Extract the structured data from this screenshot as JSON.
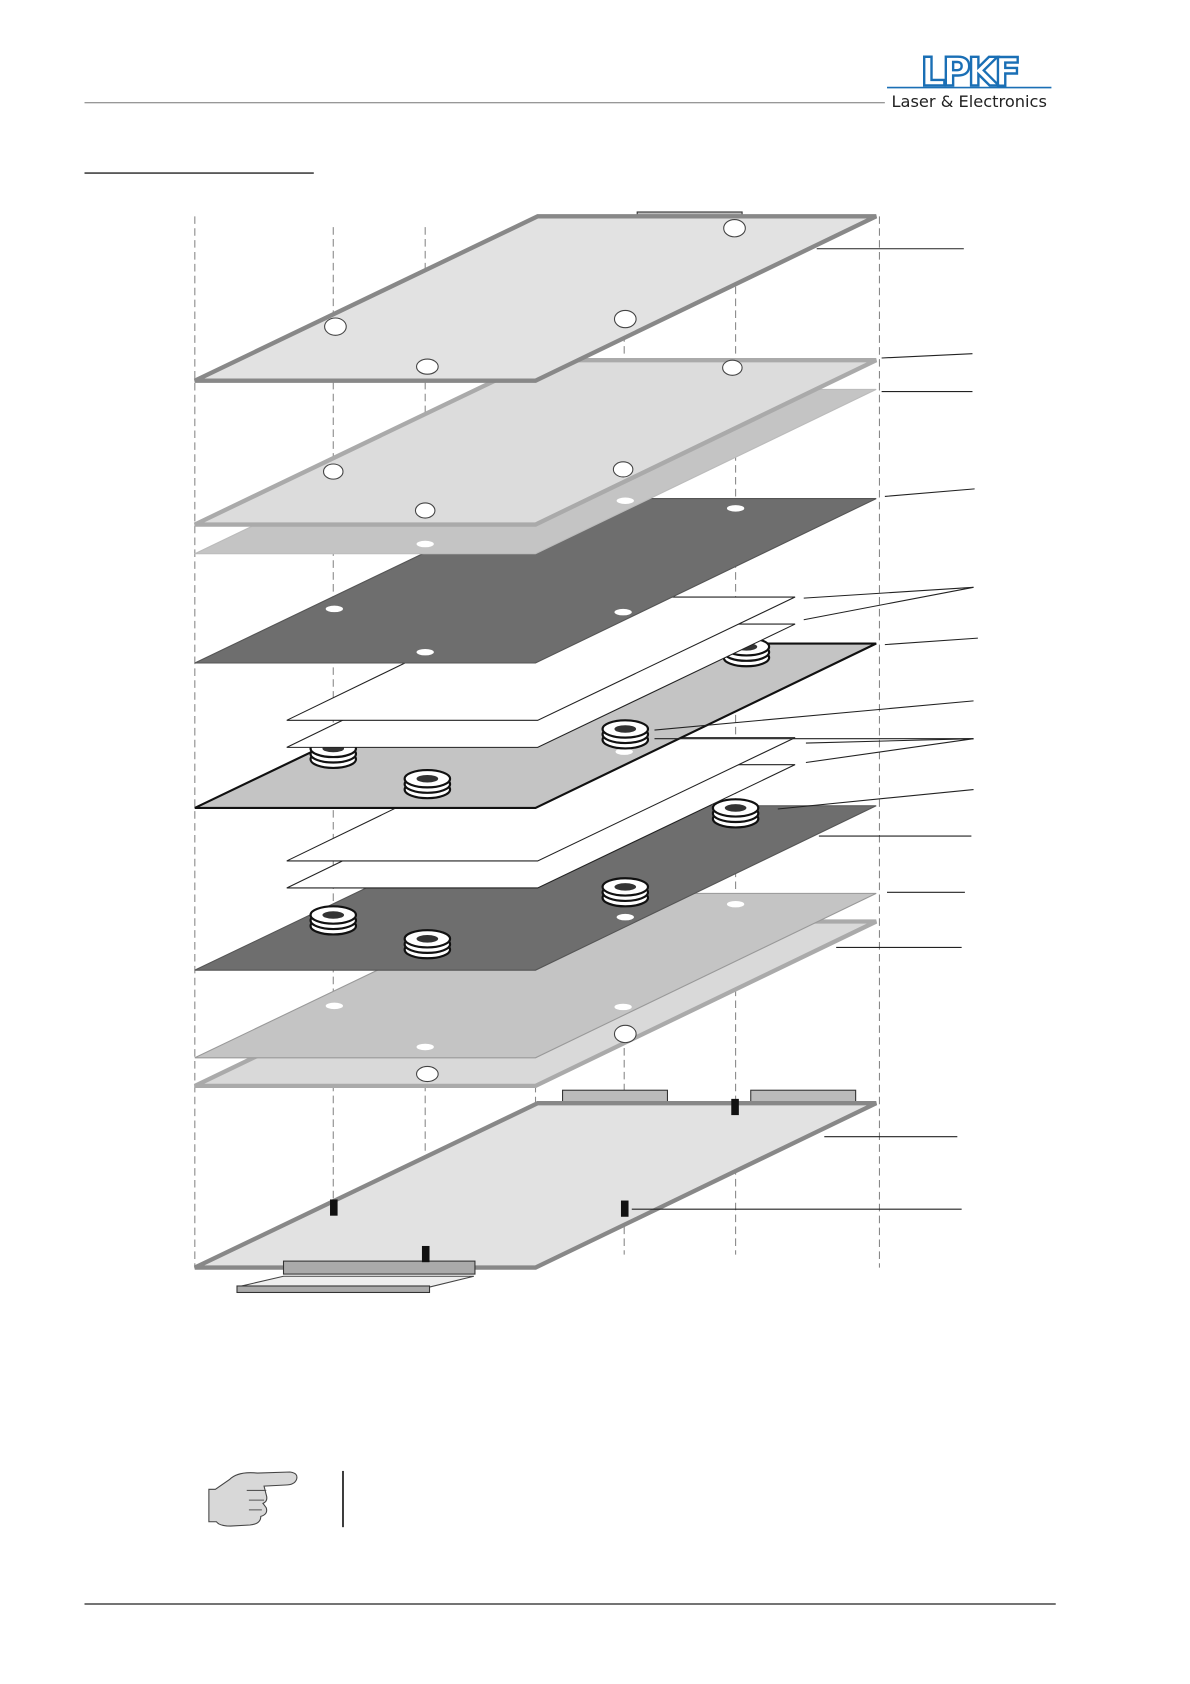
{
  "header": {
    "logo_mark": "LPKF",
    "logo_tagline": "Laser & Electronics",
    "brand_color": "#1a6fb5"
  },
  "figure": {
    "type": "exploded-layer-stack",
    "colors": {
      "light_plate": "#e2e2e2",
      "mid_plate": "#c4c4c4",
      "dark_plate": "#6e6e6e",
      "sheet": "#ffffff"
    }
  },
  "note": {
    "icon": "pointing-hand-icon"
  }
}
